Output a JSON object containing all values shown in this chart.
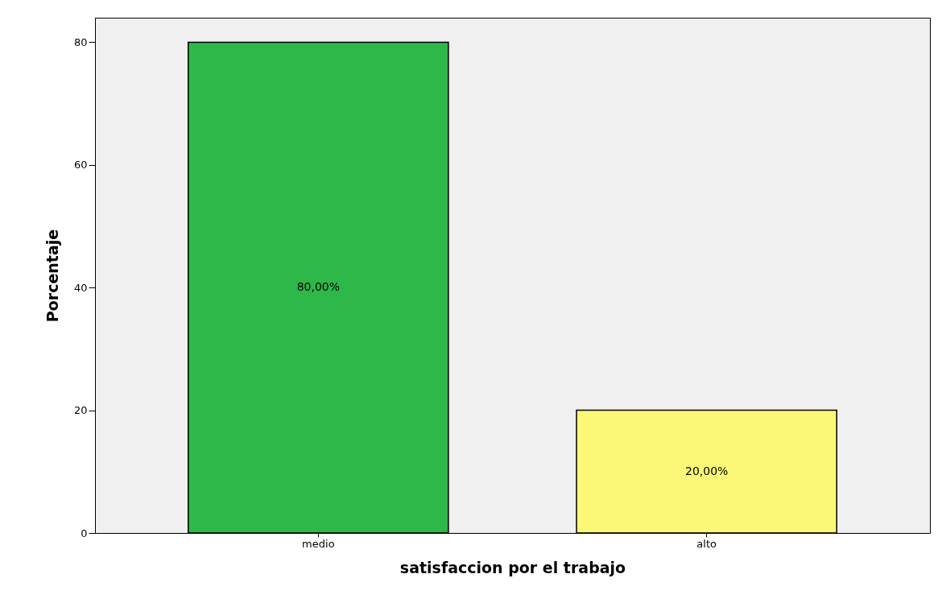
{
  "chart_data": {
    "type": "bar",
    "xlabel": "satisfaccion por el trabajo",
    "ylabel": "Porcentaje",
    "categories": [
      "medio",
      "alto"
    ],
    "values": [
      80,
      20
    ],
    "colors": [
      "#2eb84a",
      "#fbf877"
    ],
    "value_labels": [
      "80,00%",
      "20,00%"
    ],
    "ylim": [
      0,
      84
    ],
    "yticks": [
      0,
      20,
      40,
      60,
      80
    ]
  }
}
